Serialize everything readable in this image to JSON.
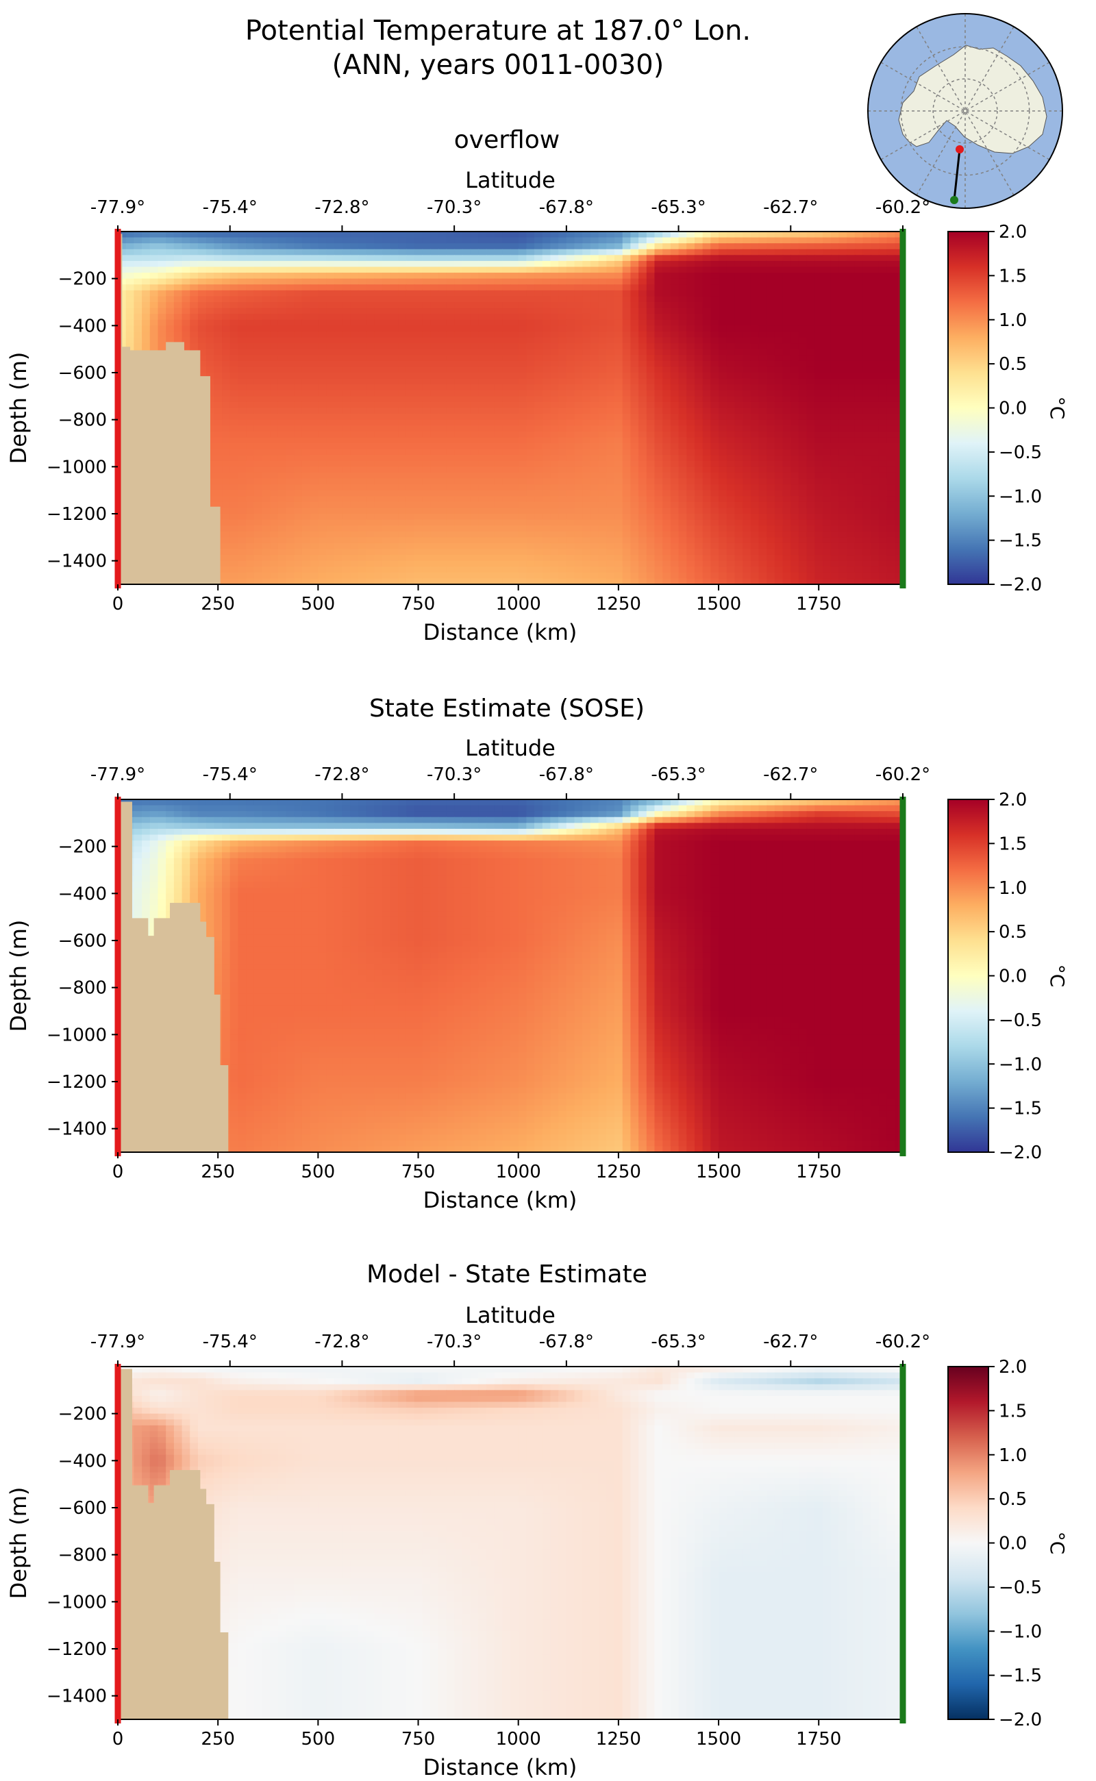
{
  "figure": {
    "title_line1": "Potential Temperature at 187.0° Lon.",
    "title_line2": "(ANN, years 0011-0030)"
  },
  "colors": {
    "land": "#d8c09a",
    "start_marker": "#e31a1c",
    "end_marker": "#1b7a1b",
    "map_ocean": "#9ab8e2",
    "map_land": "#eeefe0",
    "map_grid": "#808080"
  },
  "inset_map": {
    "projection": "south-polar stereographic",
    "transect_start_color": "red",
    "transect_end_color": "green"
  },
  "chart_data": [
    {
      "type": "heatmap",
      "title": "overflow",
      "xlabel": "Distance (km)",
      "ylabel": "Depth (m)",
      "top_axis_label": "Latitude",
      "xlim": [
        0,
        1960
      ],
      "ylim": [
        -1500,
        0
      ],
      "x_ticks": [
        0,
        250,
        500,
        750,
        1000,
        1250,
        1500,
        1750
      ],
      "x_tick_labels": [
        "0",
        "250",
        "500",
        "750",
        "1000",
        "1250",
        "1500",
        "1750"
      ],
      "y_ticks": [
        -200,
        -400,
        -600,
        -800,
        -1000,
        -1200,
        -1400
      ],
      "y_tick_labels": [
        "−200",
        "−400",
        "−600",
        "−800",
        "−1000",
        "−1200",
        "−1400"
      ],
      "lat_tick_positions_km": [
        0,
        280,
        560,
        840,
        1120,
        1400,
        1680,
        1960
      ],
      "lat_tick_labels": [
        "-77.9°",
        "-75.4°",
        "-72.8°",
        "-70.3°",
        "-67.8°",
        "-65.3°",
        "-62.7°",
        "-60.2°"
      ],
      "colormap": "RdYlBu_r",
      "colorbar": {
        "range": [
          -2.0,
          2.0
        ],
        "ticks": [
          "2.0",
          "1.5",
          "1.0",
          "0.5",
          "0.0",
          "−0.5",
          "−1.0",
          "−1.5",
          "−2.0"
        ],
        "label": "°C"
      },
      "bathymetry": [
        {
          "x": [
            0,
            10
          ],
          "top": -10
        },
        {
          "x": [
            10,
            30
          ],
          "top": -490
        },
        {
          "x": [
            30,
            120
          ],
          "top": -505
        },
        {
          "x": [
            120,
            165
          ],
          "top": -470
        },
        {
          "x": [
            165,
            205
          ],
          "top": -505
        },
        {
          "x": [
            205,
            230
          ],
          "top": -615
        },
        {
          "x": [
            230,
            250
          ],
          "top": -1170
        },
        {
          "x": [
            250,
            255
          ],
          "top": -1170
        }
      ],
      "field_samples": {
        "distance_km": [
          0,
          100,
          200,
          300,
          500,
          750,
          1000,
          1250,
          1350,
          1500,
          1750,
          1960
        ],
        "depth_m": [
          0,
          -60,
          -120,
          -180,
          -260,
          -400,
          -600,
          -900,
          -1200,
          -1500
        ],
        "temperature_degC": [
          [
            -1.7,
            -1.6,
            -1.7,
            -1.7,
            -1.7,
            -1.7,
            -1.8,
            -1.5,
            -1.0,
            0.2,
            0.5,
            1.0
          ],
          [
            -1.2,
            -1.0,
            -1.2,
            -1.4,
            -1.6,
            -1.7,
            -1.7,
            -1.2,
            0.3,
            1.2,
            1.3,
            1.4
          ],
          [
            -0.6,
            -0.6,
            -0.5,
            -0.6,
            -0.6,
            -0.7,
            -0.7,
            0.5,
            1.7,
            1.9,
            1.9,
            1.9
          ],
          [
            -0.2,
            0.0,
            0.4,
            0.6,
            0.7,
            0.8,
            0.9,
            1.0,
            1.9,
            2.0,
            2.0,
            2.0
          ],
          [
            0.2,
            0.8,
            1.2,
            1.3,
            1.4,
            1.4,
            1.4,
            1.4,
            1.9,
            2.0,
            2.0,
            2.0
          ],
          [
            0.2,
            1.0,
            1.4,
            1.5,
            1.5,
            1.5,
            1.5,
            1.4,
            1.8,
            2.0,
            2.0,
            2.0
          ],
          [
            0.3,
            1.0,
            1.3,
            1.4,
            1.4,
            1.4,
            1.4,
            1.3,
            1.6,
            1.9,
            2.0,
            2.0
          ],
          [
            0.3,
            1.0,
            1.2,
            1.2,
            1.2,
            1.2,
            1.2,
            1.1,
            1.4,
            1.7,
            1.9,
            1.9
          ],
          [
            0.3,
            1.0,
            1.1,
            1.1,
            1.0,
            1.0,
            1.0,
            1.0,
            1.2,
            1.5,
            1.8,
            1.9
          ],
          [
            0.3,
            0.9,
            0.9,
            0.9,
            0.8,
            0.7,
            0.7,
            0.8,
            1.0,
            1.3,
            1.7,
            1.8
          ]
        ]
      }
    },
    {
      "type": "heatmap",
      "title": "State Estimate (SOSE)",
      "xlabel": "Distance (km)",
      "ylabel": "Depth (m)",
      "top_axis_label": "Latitude",
      "xlim": [
        0,
        1960
      ],
      "ylim": [
        -1500,
        0
      ],
      "x_ticks": [
        0,
        250,
        500,
        750,
        1000,
        1250,
        1500,
        1750
      ],
      "x_tick_labels": [
        "0",
        "250",
        "500",
        "750",
        "1000",
        "1250",
        "1500",
        "1750"
      ],
      "y_ticks": [
        -200,
        -400,
        -600,
        -800,
        -1000,
        -1200,
        -1400
      ],
      "y_tick_labels": [
        "−200",
        "−400",
        "−600",
        "−800",
        "−1000",
        "−1200",
        "−1400"
      ],
      "lat_tick_positions_km": [
        0,
        280,
        560,
        840,
        1120,
        1400,
        1680,
        1960
      ],
      "lat_tick_labels": [
        "-77.9°",
        "-75.4°",
        "-72.8°",
        "-70.3°",
        "-67.8°",
        "-65.3°",
        "-62.7°",
        "-60.2°"
      ],
      "colormap": "RdYlBu_r",
      "colorbar": {
        "range": [
          -2.0,
          2.0
        ],
        "ticks": [
          "2.0",
          "1.5",
          "1.0",
          "0.5",
          "0.0",
          "−0.5",
          "−1.0",
          "−1.5",
          "−2.0"
        ],
        "label": "°C"
      },
      "bathymetry": [
        {
          "x": [
            0,
            10
          ],
          "top": -10
        },
        {
          "x": [
            10,
            35
          ],
          "top": -10
        },
        {
          "x": [
            35,
            75
          ],
          "top": -505
        },
        {
          "x": [
            75,
            90
          ],
          "top": -580
        },
        {
          "x": [
            90,
            130
          ],
          "top": -505
        },
        {
          "x": [
            130,
            205
          ],
          "top": -440
        },
        {
          "x": [
            205,
            220
          ],
          "top": -520
        },
        {
          "x": [
            220,
            240
          ],
          "top": -585
        },
        {
          "x": [
            240,
            255
          ],
          "top": -830
        },
        {
          "x": [
            255,
            275
          ],
          "top": -1130
        }
      ],
      "field_samples": {
        "distance_km": [
          0,
          100,
          200,
          300,
          500,
          750,
          1000,
          1250,
          1350,
          1500,
          1750,
          1960
        ],
        "depth_m": [
          0,
          -60,
          -120,
          -180,
          -260,
          -400,
          -600,
          -900,
          -1200,
          -1500
        ],
        "temperature_degC": [
          [
            -1.6,
            -1.6,
            -1.6,
            -1.6,
            -1.6,
            -1.7,
            -1.7,
            -1.5,
            -1.2,
            0.0,
            0.5,
            0.9
          ],
          [
            -1.4,
            -1.3,
            -1.5,
            -1.5,
            -1.6,
            -1.8,
            -1.8,
            -1.4,
            0.0,
            1.0,
            1.5,
            1.4
          ],
          [
            -1.0,
            -0.8,
            -0.9,
            -1.0,
            -1.0,
            -1.0,
            -1.1,
            0.6,
            1.8,
            1.9,
            1.9,
            1.9
          ],
          [
            -0.8,
            -0.3,
            0.4,
            0.8,
            1.0,
            1.2,
            1.1,
            1.0,
            1.9,
            2.0,
            2.0,
            2.0
          ],
          [
            -0.6,
            -0.2,
            0.7,
            1.1,
            1.2,
            1.3,
            1.2,
            1.1,
            1.9,
            2.0,
            2.0,
            2.0
          ],
          [
            -0.5,
            -0.1,
            0.8,
            1.2,
            1.2,
            1.3,
            1.2,
            1.1,
            1.9,
            2.0,
            2.0,
            2.0
          ],
          [
            -0.5,
            0.0,
            0.8,
            1.2,
            1.2,
            1.3,
            1.2,
            1.0,
            1.8,
            2.0,
            2.0,
            2.0
          ],
          [
            -0.5,
            0.0,
            0.9,
            1.2,
            1.2,
            1.2,
            1.1,
            0.9,
            1.7,
            2.0,
            2.0,
            2.0
          ],
          [
            -0.5,
            0.0,
            1.0,
            1.2,
            1.1,
            1.1,
            1.0,
            0.8,
            1.5,
            1.9,
            2.0,
            2.0
          ],
          [
            -0.5,
            0.0,
            1.0,
            1.1,
            1.0,
            0.9,
            0.8,
            0.6,
            1.2,
            1.8,
            1.9,
            2.0
          ]
        ]
      }
    },
    {
      "type": "heatmap",
      "title": "Model - State Estimate",
      "xlabel": "Distance (km)",
      "ylabel": "Depth (m)",
      "top_axis_label": "Latitude",
      "xlim": [
        0,
        1960
      ],
      "ylim": [
        -1500,
        0
      ],
      "x_ticks": [
        0,
        250,
        500,
        750,
        1000,
        1250,
        1500,
        1750
      ],
      "x_tick_labels": [
        "0",
        "250",
        "500",
        "750",
        "1000",
        "1250",
        "1500",
        "1750"
      ],
      "y_ticks": [
        -200,
        -400,
        -600,
        -800,
        -1000,
        -1200,
        -1400
      ],
      "y_tick_labels": [
        "−200",
        "−400",
        "−600",
        "−800",
        "−1000",
        "−1200",
        "−1400"
      ],
      "lat_tick_positions_km": [
        0,
        280,
        560,
        840,
        1120,
        1400,
        1680,
        1960
      ],
      "lat_tick_labels": [
        "-77.9°",
        "-75.4°",
        "-72.8°",
        "-70.3°",
        "-67.8°",
        "-65.3°",
        "-62.7°",
        "-60.2°"
      ],
      "colormap": "RdBu_r",
      "colorbar": {
        "range": [
          -2.0,
          2.0
        ],
        "ticks": [
          "2.0",
          "1.5",
          "1.0",
          "0.5",
          "0.0",
          "−0.5",
          "−1.0",
          "−1.5",
          "−2.0"
        ],
        "label": "°C"
      },
      "bathymetry": [
        {
          "x": [
            0,
            10
          ],
          "top": -10
        },
        {
          "x": [
            10,
            35
          ],
          "top": -10
        },
        {
          "x": [
            35,
            75
          ],
          "top": -505
        },
        {
          "x": [
            75,
            90
          ],
          "top": -580
        },
        {
          "x": [
            90,
            130
          ],
          "top": -505
        },
        {
          "x": [
            130,
            205
          ],
          "top": -440
        },
        {
          "x": [
            205,
            220
          ],
          "top": -520
        },
        {
          "x": [
            220,
            240
          ],
          "top": -585
        },
        {
          "x": [
            240,
            255
          ],
          "top": -830
        },
        {
          "x": [
            255,
            275
          ],
          "top": -1130
        }
      ],
      "field_samples": {
        "distance_km": [
          0,
          100,
          200,
          300,
          500,
          750,
          1000,
          1250,
          1350,
          1500,
          1750,
          1960
        ],
        "depth_m": [
          0,
          -60,
          -120,
          -180,
          -260,
          -400,
          -600,
          -900,
          -1200,
          -1500
        ],
        "temperature_degC": [
          [
            -0.1,
            0.0,
            -0.1,
            -0.1,
            -0.1,
            0.0,
            -0.1,
            0.0,
            0.2,
            0.2,
            0.0,
            0.1
          ],
          [
            0.2,
            0.3,
            0.3,
            0.1,
            0.0,
            -0.2,
            0.1,
            0.2,
            0.3,
            -0.3,
            -0.6,
            -0.4
          ],
          [
            0.4,
            0.1,
            0.3,
            0.4,
            0.4,
            0.9,
            0.9,
            0.2,
            0.0,
            0.0,
            0.0,
            0.0
          ],
          [
            0.6,
            0.3,
            0.3,
            0.4,
            0.4,
            0.5,
            0.4,
            0.3,
            0.1,
            0.0,
            0.0,
            0.0
          ],
          [
            0.8,
            0.9,
            0.3,
            0.3,
            0.3,
            0.3,
            0.3,
            0.3,
            0.0,
            0.2,
            0.2,
            0.1
          ],
          [
            0.7,
            1.1,
            0.5,
            0.4,
            0.3,
            0.3,
            0.3,
            0.3,
            0.0,
            0.0,
            0.0,
            0.0
          ],
          [
            0.7,
            0.8,
            0.3,
            0.2,
            0.2,
            0.2,
            0.2,
            0.3,
            0.0,
            -0.1,
            -0.2,
            0.0
          ],
          [
            0.7,
            0.8,
            0.2,
            0.1,
            0.1,
            0.1,
            0.2,
            0.3,
            0.0,
            -0.2,
            -0.2,
            -0.1
          ],
          [
            0.7,
            0.8,
            0.1,
            0.0,
            -0.1,
            0.0,
            0.2,
            0.3,
            0.0,
            -0.2,
            -0.2,
            -0.1
          ],
          [
            0.7,
            0.8,
            0.0,
            0.0,
            -0.1,
            0.0,
            0.2,
            0.3,
            0.0,
            -0.2,
            -0.2,
            -0.1
          ]
        ]
      }
    }
  ]
}
